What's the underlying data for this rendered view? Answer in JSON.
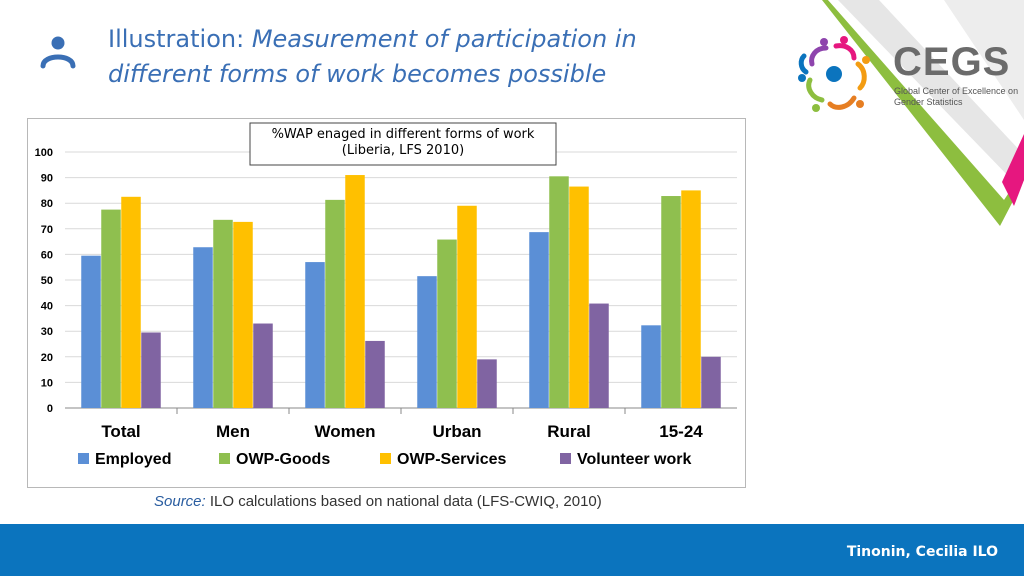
{
  "slide": {
    "title_prefix": "Illustration:",
    "title_emphasis": "Measurement of participation in different forms of work becomes possible",
    "source_label": "Source:",
    "source_text": "ILO calculations based on national data (LFS-CWIQ, 2010)",
    "footer": "Tinonin, Cecilia ILO",
    "icons": {
      "title": "person-icon"
    }
  },
  "logo": {
    "name": "CEGS",
    "subtitle": "Global Center of Excellence on Gender Statistics"
  },
  "colors": {
    "title": "#3a6fb5",
    "footer": "#0b74be",
    "accent_green": "#8dbe3f",
    "accent_magenta": "#e6177f"
  },
  "chart_data": {
    "type": "bar",
    "title_lines": [
      "%WAP enaged in different forms of work",
      "(Liberia,  LFS 2010)"
    ],
    "categories": [
      "Total",
      "Men",
      "Women",
      "Urban",
      "Rural",
      "15-24"
    ],
    "series": [
      {
        "name": "Employed",
        "color": "#5b8fd6",
        "values": [
          59.5,
          62.8,
          57,
          51.5,
          68.7,
          32.3
        ]
      },
      {
        "name": "OWP-Goods",
        "color": "#8fbf4f",
        "values": [
          77.5,
          73.5,
          81.3,
          65.8,
          90.5,
          82.8
        ]
      },
      {
        "name": "OWP-Services",
        "color": "#ffc000",
        "values": [
          82.5,
          72.7,
          91,
          79,
          86.5,
          85
        ]
      },
      {
        "name": "Volunteer work",
        "color": "#8064a2",
        "values": [
          29.5,
          33,
          26.2,
          19,
          40.8,
          20
        ]
      }
    ],
    "ylim": [
      0,
      100
    ],
    "yticks": [
      "0",
      "10",
      "20",
      "30",
      "40",
      "50",
      "60",
      "70",
      "80",
      "90",
      "100"
    ],
    "grid": true,
    "legend_position": "bottom"
  }
}
